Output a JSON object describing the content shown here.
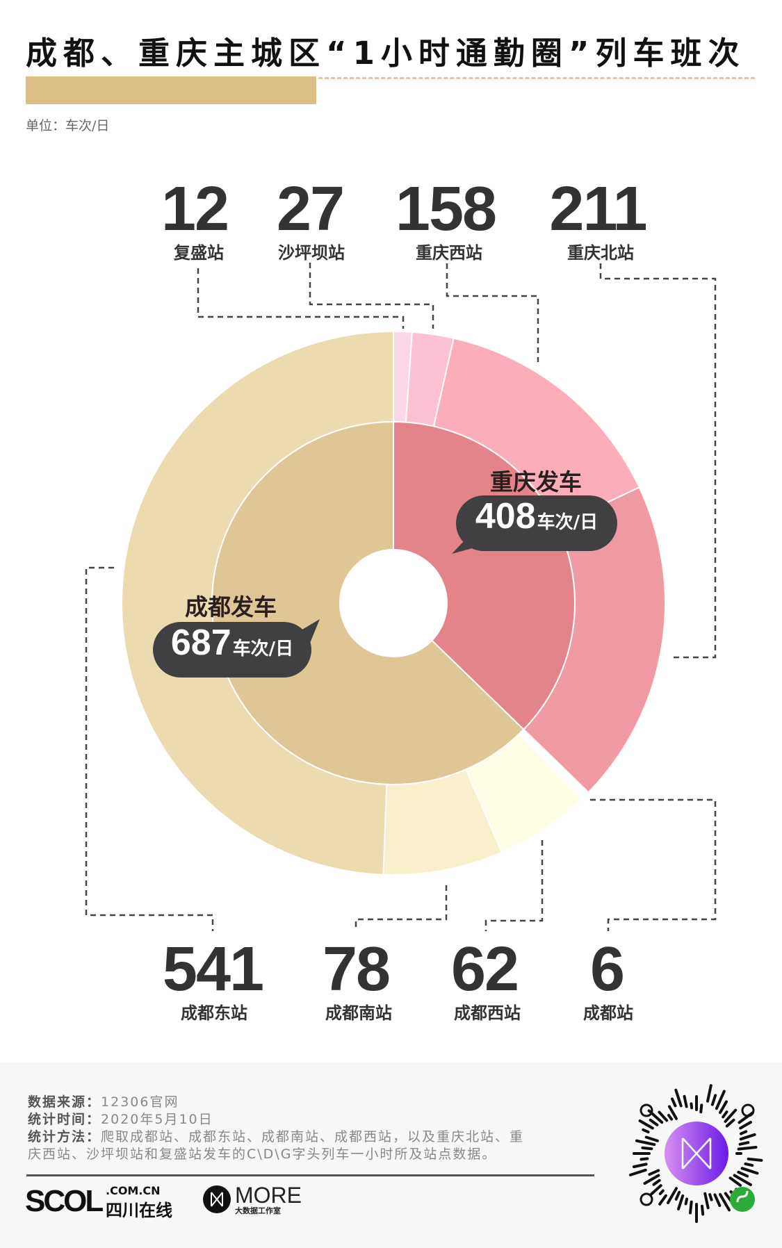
{
  "header": {
    "title": "成都、重庆主城区“1小时通勤圈”列车班次",
    "unit": "单位：车次/日"
  },
  "colors": {
    "title_bar": "#dcbe87",
    "chongqing_inner": "#e28489",
    "chengdu_inner": "#dfc695",
    "leader_line": "#444444"
  },
  "chart_data": {
    "type": "pie",
    "subtype": "nested-donut",
    "unit": "车次/日",
    "inner": [
      {
        "name": "重庆发车",
        "value": 408,
        "value_label": "408",
        "unit_label": "车次/日",
        "color": "#e28489"
      },
      {
        "name": "成都发车",
        "value": 687,
        "value_label": "687",
        "unit_label": "车次/日",
        "color": "#dfc695"
      }
    ],
    "outer": [
      {
        "name": "复盛站",
        "value": 12,
        "group": "重庆发车",
        "color": "#fdd6e8"
      },
      {
        "name": "沙坪坝站",
        "value": 27,
        "group": "重庆发车",
        "color": "#fcc2d4"
      },
      {
        "name": "重庆西站",
        "value": 158,
        "group": "重庆发车",
        "color": "#fbaeba"
      },
      {
        "name": "重庆北站",
        "value": 211,
        "group": "重庆发车",
        "color": "#f09aa3"
      },
      {
        "name": "成都站",
        "value": 6,
        "group": "成都发车",
        "color": "#ffffff"
      },
      {
        "name": "成都西站",
        "value": 62,
        "group": "成都发车",
        "color": "#fefee6"
      },
      {
        "name": "成都南站",
        "value": 78,
        "group": "成都发车",
        "color": "#f9efca"
      },
      {
        "name": "成都东站",
        "value": 541,
        "group": "成都发车",
        "color": "#eddbb0"
      }
    ]
  },
  "footer": {
    "source_label": "数据来源：",
    "source": "12306官网",
    "time_label": "统计时间：",
    "time": "2020年5月10日",
    "method_label": "统计方法：",
    "method_line1": "爬取成都站、成都东站、成都南站、成都西站，以及重庆北站、重",
    "method_line2": "庆西站、沙坪坝站和复盛站发车的C\\D\\G字头列车一小时所及站点数据。",
    "logo1": "SCOL",
    "logo1_domain": ".COM.CN",
    "logo1_cn": "四川在线",
    "logo2": "MORE",
    "logo2_sub": "大数据工作室"
  }
}
